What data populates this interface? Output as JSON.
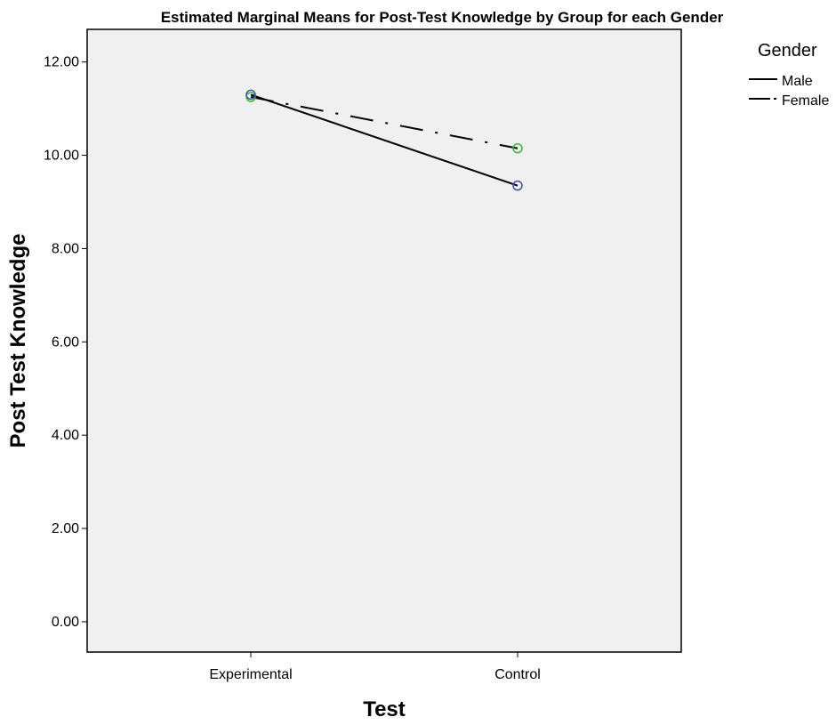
{
  "chart_data": {
    "type": "line",
    "title": "Estimated Marginal Means for Post-Test Knowledge by Group for each Gender",
    "xlabel": "Test",
    "ylabel": "Post Test Knowledge",
    "categories": [
      "Experimental",
      "Control"
    ],
    "y_ticks": [
      "0.00",
      "2.00",
      "4.00",
      "6.00",
      "8.00",
      "10.00",
      "12.00"
    ],
    "ylim": [
      -0.65,
      12.7
    ],
    "grid": false,
    "legend": {
      "title": "Gender",
      "placement": "top-right"
    },
    "series": [
      {
        "name": "Male",
        "values": [
          11.3,
          9.35
        ],
        "line_style": "solid",
        "marker_color": "#3f4fa8"
      },
      {
        "name": "Female",
        "values": [
          11.25,
          10.15
        ],
        "line_style": "dash-dot",
        "marker_color": "#2fbf2f"
      }
    ],
    "colors": {
      "plot_background": "#f0f0f0",
      "line": "#000000"
    }
  }
}
